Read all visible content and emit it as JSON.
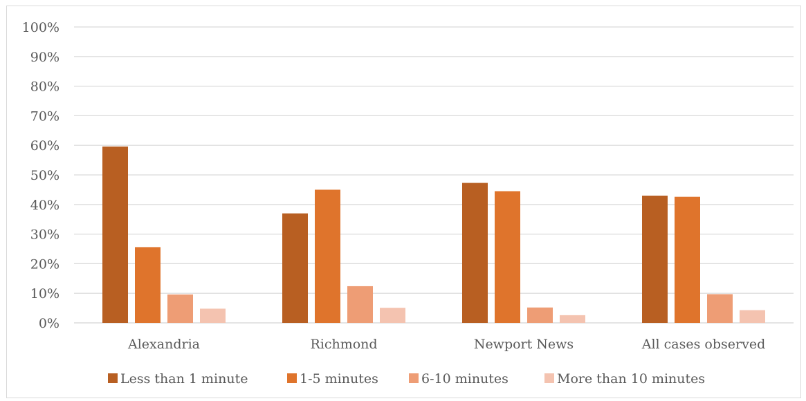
{
  "chart_data": {
    "type": "bar",
    "categories": [
      "Alexandria",
      "Richmond",
      "Newport News",
      "All cases observed"
    ],
    "series": [
      {
        "name": "Less than 1 minute",
        "color": "#b85f22",
        "values": [
          59.6,
          37.0,
          47.3,
          43.0
        ]
      },
      {
        "name": "1-5 minutes",
        "color": "#df742c",
        "values": [
          25.6,
          45.0,
          44.5,
          42.6
        ]
      },
      {
        "name": "6-10 minutes",
        "color": "#ee9d75",
        "values": [
          9.6,
          12.4,
          5.2,
          9.7
        ]
      },
      {
        "name": "More than 10 minutes",
        "color": "#f4c3b0",
        "values": [
          4.8,
          5.1,
          2.6,
          4.3
        ]
      }
    ],
    "yticks": [
      "0%",
      "10%",
      "20%",
      "30%",
      "40%",
      "50%",
      "60%",
      "70%",
      "80%",
      "90%",
      "100%"
    ],
    "ylim": [
      0,
      100
    ],
    "grid": true,
    "legend_position": "bottom"
  }
}
